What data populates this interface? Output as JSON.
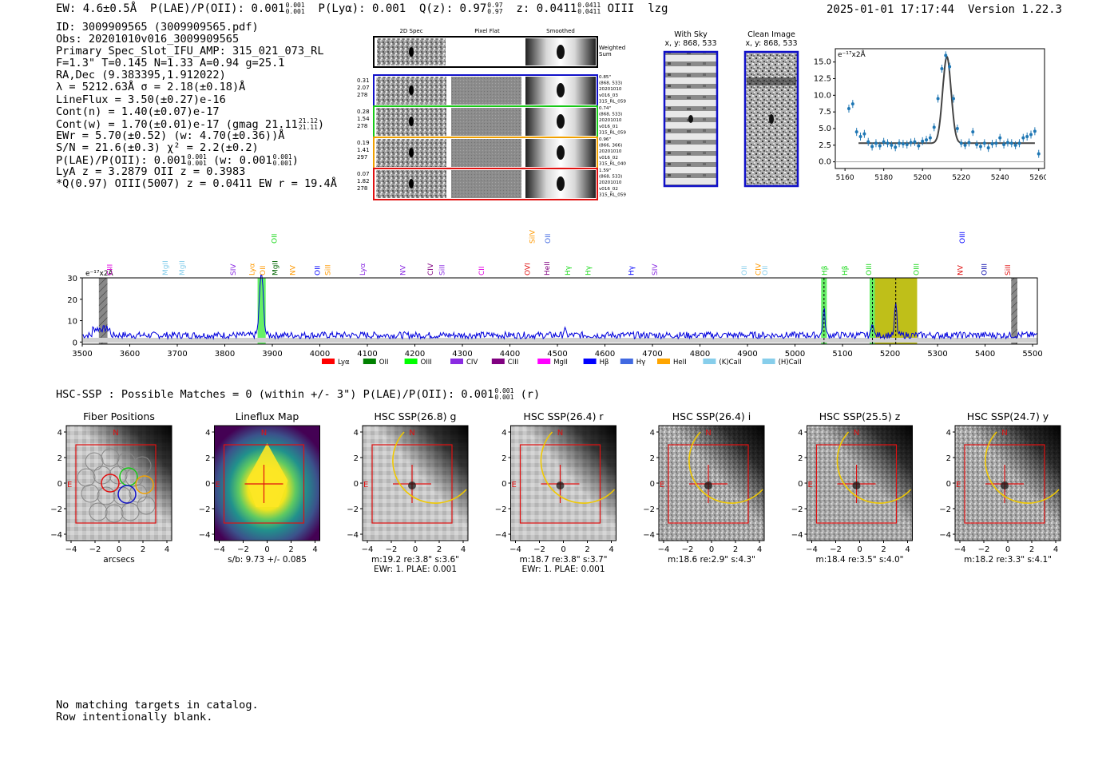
{
  "header": {
    "top_line": {
      "ew": "EW: 4.6±0.5Å",
      "plae_label": "P(LAE)/P(OII): 0.001",
      "plae_up": "0.001",
      "plae_lo": "0.001",
      "plya": "P(Lyα): 0.001",
      "q_label": "Q(z): 0.97",
      "q_up": "0.97",
      "q_lo": "0.97",
      "z_label": "z: 0.0411",
      "z_up": "0.0411",
      "z_lo": "0.0411",
      "line": "OIII",
      "flag": "lzg"
    },
    "timestamp": "2025-01-01 17:17:44",
    "version": "Version 1.22.3"
  },
  "info": {
    "id": "ID: 3009909565 (3009909565.pdf)",
    "obs": "Obs: 20201010v016_3009909565",
    "primary": "Primary Spec_Slot_IFU_AMP: 315_021_073_RL",
    "params": "F=1.3\"  T=0.145  N=1.33  A=0.94  g=25.1",
    "radec": "RA,Dec (9.383395,1.912022)",
    "lambda": "λ = 5212.63Å  σ = 2.18(±0.18)Å",
    "lineflux": "LineFlux = 3.50(±0.27)e-16",
    "contn": "Cont(n) = 1.40(±0.07)e-17",
    "contw": "Cont(w) = 1.70(±0.01)e-17 (gmag 21.11",
    "gmag_up": "21.12",
    "gmag_lo": "21.11",
    "contw_end": ")",
    "ewr": "EWr = 5.70(±0.52) (w: 4.70(±0.36))Å",
    "sn": "S/N = 21.6(±0.3)  χ² = 2.2(±0.2)",
    "plae": "P(LAE)/P(OII): 0.001",
    "plae_up": "0.001",
    "plae_lo": "0.001",
    "plae_w": "(w: 0.001",
    "plae_w_up": "0.001",
    "plae_w_lo": "0.001",
    "plae_end": ")",
    "lya_oii": "LyA z = 3.2879  OII z = 0.3983",
    "q_line": "*Q(0.97) OIII(5007) z = 0.0411  EW r = 19.4Å"
  },
  "spec2d": {
    "col_labels": [
      "2D Spec",
      "Pixel Flat",
      "Smoothed"
    ],
    "weighted_sum": [
      "Weighted",
      "Sum"
    ],
    "rows": [
      {
        "left": [
          "0.31",
          "2.07",
          "278"
        ],
        "right": [
          "0.85\"",
          "(868, 533)",
          "20201010",
          "v016_03",
          "315_RL_059"
        ],
        "color": "#1010c8"
      },
      {
        "left": [
          "0.28",
          "1.54",
          "278"
        ],
        "right": [
          "0.74\"",
          "(868, 533)",
          "20201010",
          "v016_01",
          "315_RL_059"
        ],
        "color": "#18c818"
      },
      {
        "left": [
          "0.19",
          "1.41",
          "297"
        ],
        "right": [
          "0.96\"",
          "(866, 366)",
          "20201010",
          "v016_02",
          "315_RL_040"
        ],
        "color": "#f0a000"
      },
      {
        "left": [
          "0.07",
          "1.82",
          "278"
        ],
        "right": [
          "1.59\"",
          "(868, 533)",
          "20201010",
          "v016_02",
          "315_RL_059"
        ],
        "color": "#e01010"
      }
    ]
  },
  "cutouts": {
    "with_sky": {
      "title": "With Sky",
      "coords": "x, y: 868, 533"
    },
    "clean": {
      "title": "Clean Image",
      "coords": "x, y: 868, 533"
    }
  },
  "line_fit_chart": {
    "chart_data": {
      "type": "scatter",
      "title": "",
      "ylabel": "e⁻¹⁷x2Å",
      "xlim": [
        5155,
        5263
      ],
      "ylim": [
        -1,
        17
      ],
      "xticks": [
        "5160",
        "5180",
        "5200",
        "5220",
        "5240",
        "5260"
      ],
      "yticks": [
        "0.0",
        "2.5",
        "5.0",
        "7.5",
        "10.0",
        "12.5",
        "15.0"
      ],
      "series": [
        {
          "name": "data",
          "x": [
            5162,
            5164,
            5166,
            5168,
            5170,
            5172,
            5174,
            5176,
            5178,
            5180,
            5182,
            5184,
            5186,
            5188,
            5190,
            5192,
            5194,
            5196,
            5198,
            5200,
            5202,
            5204,
            5206,
            5208,
            5210,
            5212,
            5214,
            5216,
            5218,
            5220,
            5222,
            5224,
            5226,
            5228,
            5230,
            5232,
            5234,
            5236,
            5238,
            5240,
            5242,
            5244,
            5246,
            5248,
            5250,
            5252,
            5254,
            5256,
            5258,
            5260
          ],
          "values": [
            8.0,
            8.7,
            4.5,
            3.8,
            4.2,
            3.0,
            2.3,
            2.8,
            2.4,
            3.0,
            2.8,
            2.5,
            2.2,
            2.8,
            2.7,
            2.6,
            2.9,
            3.0,
            2.4,
            3.1,
            3.3,
            3.6,
            5.2,
            9.5,
            14.0,
            16.0,
            14.3,
            9.5,
            5.0,
            2.8,
            2.5,
            2.9,
            4.5,
            2.6,
            2.3,
            2.8,
            2.1,
            2.7,
            2.8,
            3.6,
            2.6,
            2.9,
            2.8,
            2.5,
            2.8,
            3.6,
            3.8,
            4.1,
            4.6,
            1.2
          ]
        },
        {
          "name": "fit",
          "center": 5212.6,
          "sigma": 2.18,
          "amplitude": 13.0,
          "continuum": 2.8,
          "range": [
            5167,
            5258
          ]
        }
      ]
    }
  },
  "spectrum_chart": {
    "chart_data": {
      "type": "line",
      "ylabel": "e⁻¹⁷x2Å",
      "xlim": [
        3500,
        5510
      ],
      "ylim": [
        -1,
        30
      ],
      "xticks": [
        "3500",
        "3600",
        "3700",
        "3800",
        "3900",
        "4000",
        "4100",
        "4200",
        "4300",
        "4400",
        "4500",
        "4600",
        "4700",
        "4800",
        "4900",
        "5000",
        "5100",
        "5200",
        "5300",
        "5400",
        "5500"
      ],
      "yticks": [
        "0",
        "10",
        "20",
        "30"
      ],
      "peaks": [
        {
          "x": 3877,
          "height": 29,
          "width": 4
        },
        {
          "x": 5061,
          "height": 12,
          "width": 2.5
        },
        {
          "x": 5163,
          "height": 7,
          "width": 2
        },
        {
          "x": 5212,
          "height": 15,
          "width": 2.2
        },
        {
          "x": 4515,
          "height": 3,
          "width": 2
        }
      ],
      "baseline": 3.2,
      "bands": [
        {
          "x0": 3535,
          "x1": 3553,
          "color": "#888888",
          "hatch": true
        },
        {
          "x0": 3869,
          "x1": 3886,
          "color": "#55ee55"
        },
        {
          "x0": 5055,
          "x1": 5067,
          "color": "#55ee55"
        },
        {
          "x0": 5157,
          "x1": 5168,
          "color": "#55ee55"
        },
        {
          "x0": 5168,
          "x1": 5257,
          "color": "#b8b800"
        },
        {
          "x0": 5455,
          "x1": 5468,
          "color": "#888888",
          "hatch": true
        }
      ],
      "dashed_lines": [
        5061,
        5163,
        5212
      ],
      "line_labels": [
        {
          "text": "CIII",
          "x": 3558,
          "color": "#e000e0",
          "row": 1
        },
        {
          "text": "MgII",
          "x": 3675,
          "color": "#87ceeb",
          "row": 1
        },
        {
          "text": "MgII",
          "x": 3710,
          "color": "#87ceeb",
          "row": 1
        },
        {
          "text": "SIV",
          "x": 3818,
          "color": "#8a2be2",
          "row": 1
        },
        {
          "text": "Lyα",
          "x": 3857,
          "color": "#ff9900",
          "row": 1
        },
        {
          "text": "OII",
          "x": 3880,
          "color": "#ff9900",
          "row": 1
        },
        {
          "text": "OII",
          "x": 3904,
          "color": "#18d818",
          "row": 0
        },
        {
          "text": "MgII",
          "x": 3906,
          "color": "#006400",
          "row": 1
        },
        {
          "text": "NV",
          "x": 3943,
          "color": "#ff9900",
          "row": 1
        },
        {
          "text": "OII",
          "x": 3995,
          "color": "#0000ff",
          "row": 1
        },
        {
          "text": "SiII",
          "x": 4017,
          "color": "#ff9900",
          "row": 1
        },
        {
          "text": "Lyα",
          "x": 4090,
          "color": "#8a2be2",
          "row": 1
        },
        {
          "text": "NV",
          "x": 4175,
          "color": "#8a2be2",
          "row": 1
        },
        {
          "text": "CIV",
          "x": 4233,
          "color": "#800080",
          "row": 1
        },
        {
          "text": "SiII",
          "x": 4257,
          "color": "#8a2be2",
          "row": 1
        },
        {
          "text": "CII",
          "x": 4340,
          "color": "#e000e0",
          "row": 1
        },
        {
          "text": "SiIV",
          "x": 4447,
          "color": "#ff9900",
          "row": 0
        },
        {
          "text": "OVI",
          "x": 4437,
          "color": "#e01010",
          "row": 1
        },
        {
          "text": "OII",
          "x": 4480,
          "color": "#4169e1",
          "row": 0
        },
        {
          "text": "HeII",
          "x": 4478,
          "color": "#800080",
          "row": 1
        },
        {
          "text": "Hγ",
          "x": 4522,
          "color": "#18d818",
          "row": 1
        },
        {
          "text": "Hγ",
          "x": 4565,
          "color": "#18d818",
          "row": 1
        },
        {
          "text": "Hγ",
          "x": 4655,
          "color": "#0000ff",
          "row": 1
        },
        {
          "text": "SIV",
          "x": 4705,
          "color": "#8a2be2",
          "row": 1
        },
        {
          "text": "OII",
          "x": 4893,
          "color": "#87ceeb",
          "row": 1
        },
        {
          "text": "CIV",
          "x": 4923,
          "color": "#ff9900",
          "row": 1
        },
        {
          "text": "OII",
          "x": 4937,
          "color": "#87ceeb",
          "row": 1
        },
        {
          "text": "Hβ",
          "x": 5062,
          "color": "#18d818",
          "row": 1
        },
        {
          "text": "Hβ",
          "x": 5105,
          "color": "#18d818",
          "row": 1
        },
        {
          "text": "OIII",
          "x": 5155,
          "color": "#18d818",
          "row": 1
        },
        {
          "text": "OIII",
          "x": 5255,
          "color": "#18d818",
          "row": 1
        },
        {
          "text": "OIII",
          "x": 5352,
          "color": "#0000ff",
          "row": 0
        },
        {
          "text": "NV",
          "x": 5348,
          "color": "#e01010",
          "row": 1
        },
        {
          "text": "OIII",
          "x": 5398,
          "color": "#0000aa",
          "row": 1
        },
        {
          "text": "SiII",
          "x": 5448,
          "color": "#e01010",
          "row": 1
        }
      ],
      "legend": [
        {
          "name": "Lyα",
          "color": "#ff0000"
        },
        {
          "name": "OII",
          "color": "#008000"
        },
        {
          "name": "OIII",
          "color": "#00ff00"
        },
        {
          "name": "CIV",
          "color": "#8a2be2"
        },
        {
          "name": "CIII",
          "color": "#800080"
        },
        {
          "name": "MgII",
          "color": "#ff00ff"
        },
        {
          "name": "Hβ",
          "color": "#0000ff"
        },
        {
          "name": "Hγ",
          "color": "#4169e1"
        },
        {
          "name": "HeII",
          "color": "#ffa500"
        },
        {
          "name": "(K)CaII",
          "color": "#87ceeb"
        },
        {
          "name": "(H)CaII",
          "color": "#87ceeb"
        }
      ]
    }
  },
  "hsc": {
    "line": "HSC-SSP : Possible Matches = 0 (within +/- 3\")  P(LAE)/P(OII): 0.001",
    "up": "0.001",
    "lo": "0.001",
    "tail": "(r)",
    "ticks": [
      "−4",
      "−2",
      "0",
      "2",
      "4"
    ],
    "compass_n": "N",
    "compass_e": "E",
    "panels": [
      {
        "title": "Fiber Positions",
        "caption1": "arcsecs",
        "caption2": ""
      },
      {
        "title": "Lineflux Map",
        "caption1": "s/b: 9.73 +/- 0.085",
        "caption2": ""
      },
      {
        "title": "HSC SSP(26.8) g",
        "caption1": "m:19.2  re:3.8\"  s:3.6\"",
        "caption2": "EWr: 1. PLAE: 0.001"
      },
      {
        "title": "HSC SSP(26.4) r",
        "caption1": "m:18.7  re:3.8\"  s:3.7\"",
        "caption2": "EWr: 1. PLAE: 0.001"
      },
      {
        "title": "HSC SSP(26.4) i",
        "caption1": "m:18.6  re:2.9\"  s:4.3\"",
        "caption2": ""
      },
      {
        "title": "HSC SSP(25.5) z",
        "caption1": "m:18.4  re:3.5\"  s:4.0\"",
        "caption2": ""
      },
      {
        "title": "HSC SSP(24.7) y",
        "caption1": "m:18.2  re:3.3\"  s:4.1\"",
        "caption2": ""
      }
    ]
  },
  "footer": {
    "line1": "No matching targets in catalog.",
    "line2": "Row intentionally blank."
  }
}
